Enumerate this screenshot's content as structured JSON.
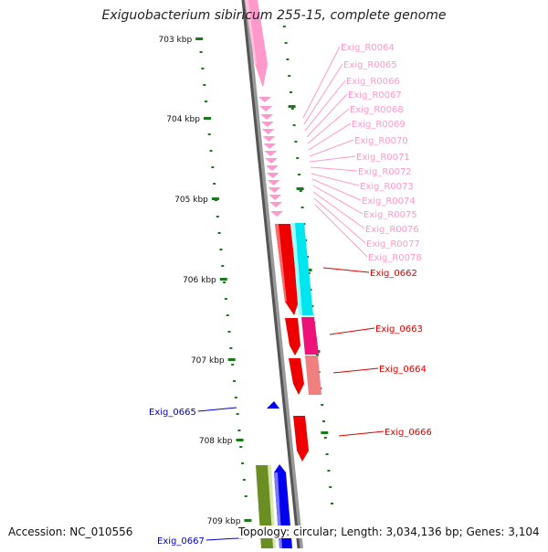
{
  "title": "Exiguobacterium sibiricum 255-15, complete genome",
  "footer": {
    "accession": "Accession: NC_010556",
    "topology": "Topology: circular; Length: 3,034,136 bp; Genes: 3,104"
  },
  "scale_ticks": [
    "703 kbp",
    "704 kbp",
    "705 kbp",
    "706 kbp",
    "707 kbp",
    "708 kbp",
    "709 kbp"
  ],
  "colors": {
    "rrna_pink": "#ff99cc",
    "red": "#ee0000",
    "cyan": "#00e5ee",
    "magenta": "#ee1177",
    "salmon": "#f08080",
    "blue": "#0000ee",
    "olive": "#6b8e23",
    "tick_green": "#1a7a1a"
  },
  "gene_labels": [
    {
      "text": "Exig_R0064",
      "color": "#ff99cc"
    },
    {
      "text": "Exig_R0065",
      "color": "#ff99cc"
    },
    {
      "text": "Exig_R0066",
      "color": "#ff99cc"
    },
    {
      "text": "Exig_R0067",
      "color": "#ff99cc"
    },
    {
      "text": "Exig_R0068",
      "color": "#ff99cc"
    },
    {
      "text": "Exig_R0069",
      "color": "#ff99cc"
    },
    {
      "text": "Exig_R0070",
      "color": "#ff99cc"
    },
    {
      "text": "Exig_R0071",
      "color": "#ff99cc"
    },
    {
      "text": "Exig_R0072",
      "color": "#ff99cc"
    },
    {
      "text": "Exig_R0073",
      "color": "#ff99cc"
    },
    {
      "text": "Exig_R0074",
      "color": "#ff99cc"
    },
    {
      "text": "Exig_R0075",
      "color": "#ff99cc"
    },
    {
      "text": "Exig_R0076",
      "color": "#ff99cc"
    },
    {
      "text": "Exig_R0077",
      "color": "#ff99cc"
    },
    {
      "text": "Exig_R0078",
      "color": "#ff99cc"
    },
    {
      "text": "Exig_0662",
      "color": "#dd0000"
    },
    {
      "text": "Exig_0663",
      "color": "#dd0000"
    },
    {
      "text": "Exig_0664",
      "color": "#dd0000"
    },
    {
      "text": "Exig_0665",
      "color": "#0000cc"
    },
    {
      "text": "Exig_0666",
      "color": "#dd0000"
    },
    {
      "text": "Exig_0667",
      "color": "#0000cc"
    }
  ]
}
